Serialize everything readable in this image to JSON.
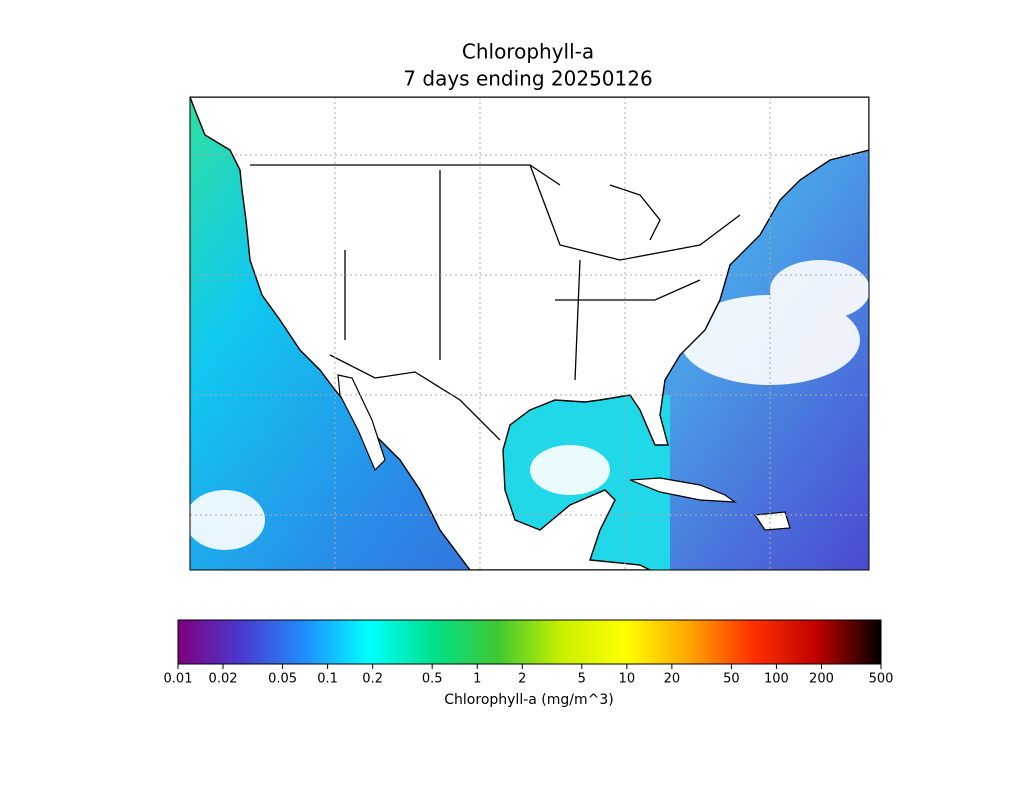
{
  "title": "Chlorophyll-a",
  "subtitle": "7 days ending 20250126",
  "colorbar": {
    "label": "Chlorophyll-a (mg/m^3)",
    "scale": "log",
    "lim": [
      0.01,
      500
    ],
    "ticks": [
      0.01,
      0.02,
      0.05,
      0.1,
      0.2,
      0.5,
      1,
      2,
      5,
      10,
      20,
      50,
      100,
      200,
      500
    ],
    "colors": [
      "#7f007f",
      "#4a3ad0",
      "#1e90ff",
      "#00ffff",
      "#00e08a",
      "#3ec832",
      "#c8f000",
      "#ffff00",
      "#ffa500",
      "#ff3000",
      "#c00000",
      "#000000"
    ]
  }
}
